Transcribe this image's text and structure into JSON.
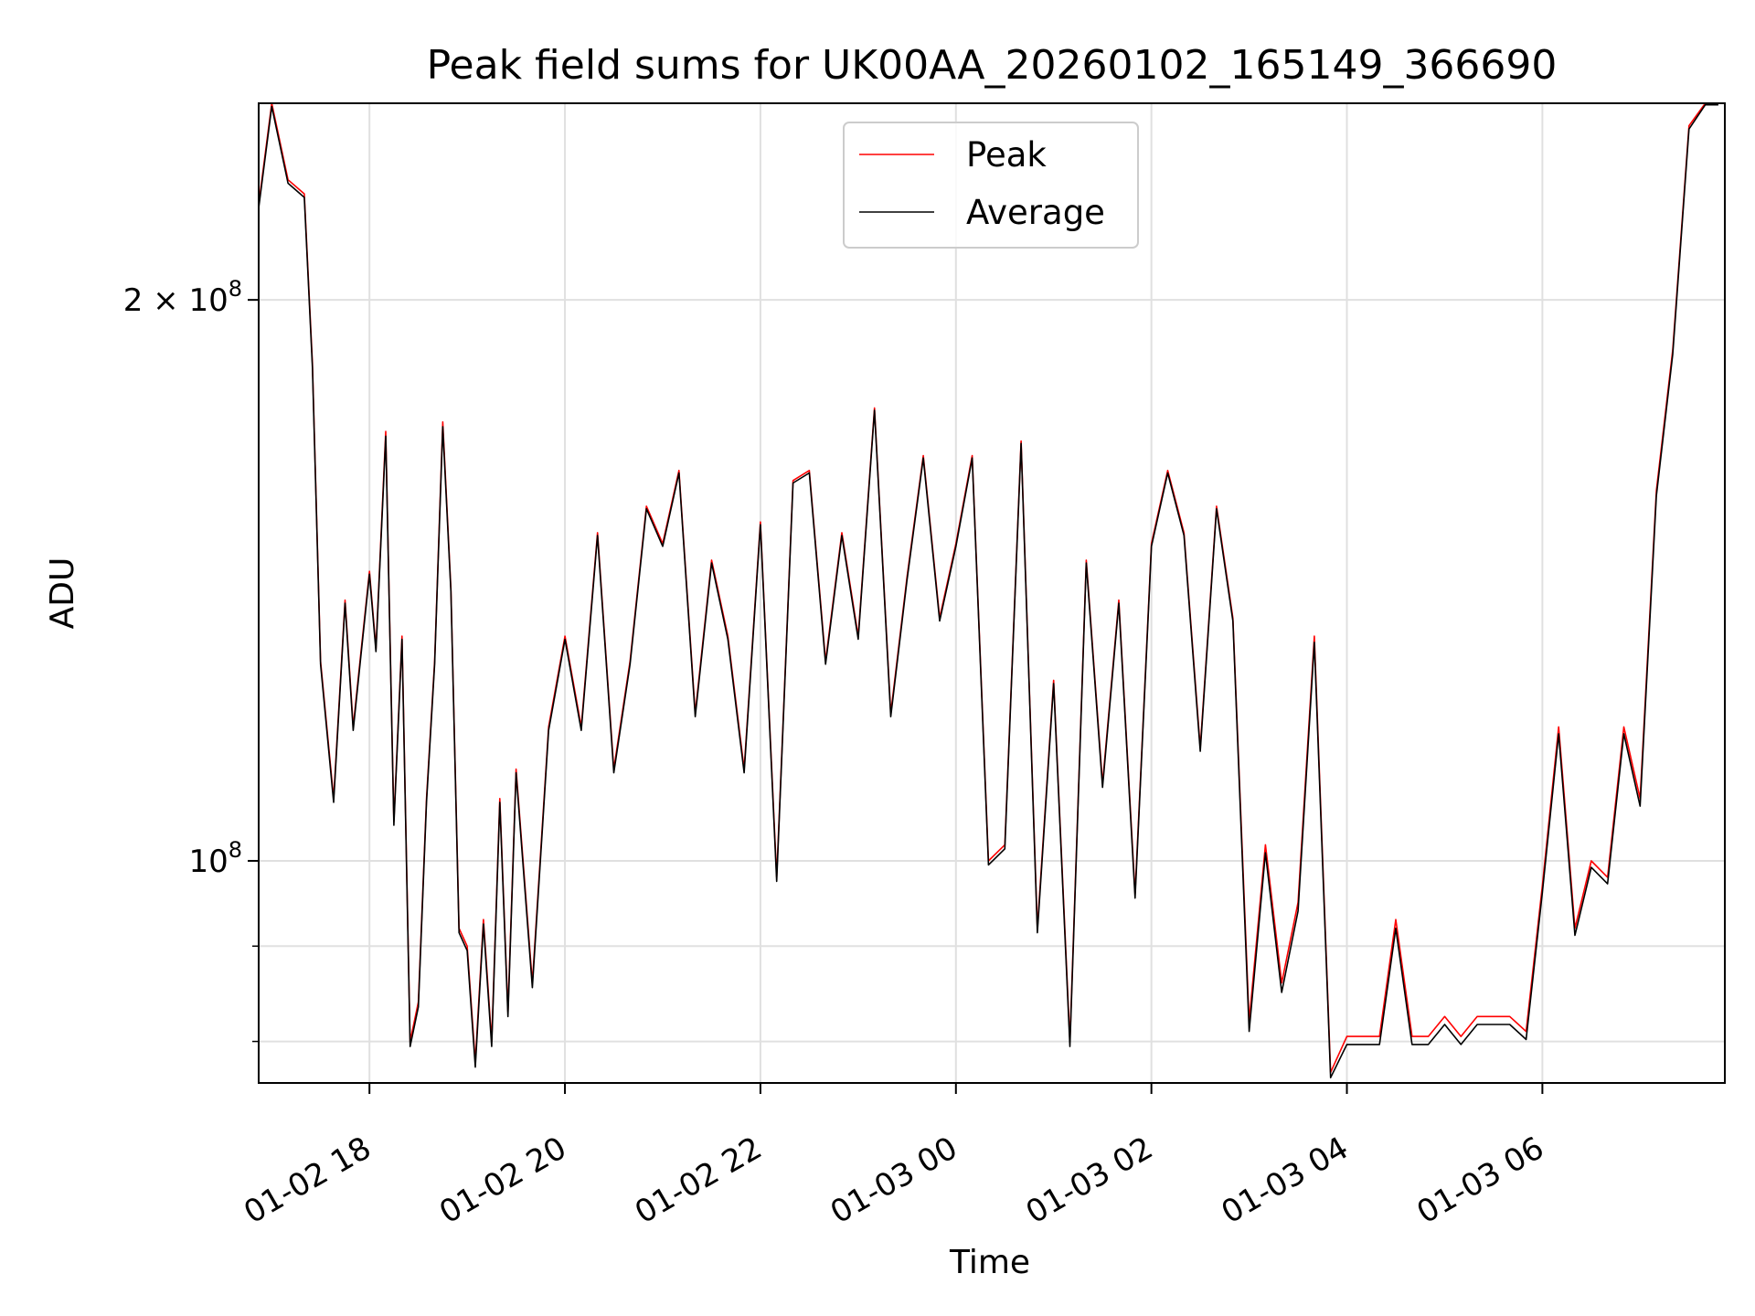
{
  "chart_data": {
    "type": "line",
    "title": "Peak field sums for UK00AA_20260102_165149_366690",
    "xlabel": "Time",
    "ylabel": "ADU",
    "y_scale": "log",
    "ylim": [
      76000000,
      255000000
    ],
    "xlim": [
      "2026-01-02 16:52",
      "2026-01-03 07:52"
    ],
    "grid": true,
    "legend_position": "top-center",
    "x_ticks": [
      {
        "x": "2026-01-02 18:00",
        "label": "01-02 18"
      },
      {
        "x": "2026-01-02 20:00",
        "label": "01-02 20"
      },
      {
        "x": "2026-01-02 22:00",
        "label": "01-02 22"
      },
      {
        "x": "2026-01-03 00:00",
        "label": "01-03 00"
      },
      {
        "x": "2026-01-03 02:00",
        "label": "01-03 02"
      },
      {
        "x": "2026-01-03 04:00",
        "label": "01-03 04"
      },
      {
        "x": "2026-01-03 06:00",
        "label": "01-03 06"
      }
    ],
    "y_ticks": [
      {
        "value": 100000000,
        "mantissa": "",
        "exponent": "8"
      },
      {
        "value": 200000000,
        "mantissa": "2 × ",
        "exponent": "8"
      }
    ],
    "y_minor_ticks": [
      80000000,
      90000000
    ],
    "series": [
      {
        "name": "Peak",
        "color": "#ff0000",
        "x": [
          "2026-01-02 16:52",
          "2026-01-02 17:00",
          "2026-01-02 17:10",
          "2026-01-02 17:20",
          "2026-01-02 17:25",
          "2026-01-02 17:30",
          "2026-01-02 17:38",
          "2026-01-02 17:45",
          "2026-01-02 17:50",
          "2026-01-02 17:55",
          "2026-01-02 18:00",
          "2026-01-02 18:04",
          "2026-01-02 18:10",
          "2026-01-02 18:15",
          "2026-01-02 18:20",
          "2026-01-02 18:25",
          "2026-01-02 18:30",
          "2026-01-02 18:35",
          "2026-01-02 18:40",
          "2026-01-02 18:45",
          "2026-01-02 18:50",
          "2026-01-02 18:55",
          "2026-01-02 19:00",
          "2026-01-02 19:05",
          "2026-01-02 19:10",
          "2026-01-02 19:15",
          "2026-01-02 19:20",
          "2026-01-02 19:25",
          "2026-01-02 19:30",
          "2026-01-02 19:40",
          "2026-01-02 19:50",
          "2026-01-02 20:00",
          "2026-01-02 20:10",
          "2026-01-02 20:20",
          "2026-01-02 20:30",
          "2026-01-02 20:40",
          "2026-01-02 20:50",
          "2026-01-02 21:00",
          "2026-01-02 21:10",
          "2026-01-02 21:20",
          "2026-01-02 21:30",
          "2026-01-02 21:40",
          "2026-01-02 21:50",
          "2026-01-02 22:00",
          "2026-01-02 22:10",
          "2026-01-02 22:20",
          "2026-01-02 22:30",
          "2026-01-02 22:40",
          "2026-01-02 22:50",
          "2026-01-02 23:00",
          "2026-01-02 23:10",
          "2026-01-02 23:20",
          "2026-01-02 23:30",
          "2026-01-02 23:40",
          "2026-01-02 23:50",
          "2026-01-03 00:00",
          "2026-01-03 00:10",
          "2026-01-03 00:20",
          "2026-01-03 00:30",
          "2026-01-03 00:40",
          "2026-01-03 00:50",
          "2026-01-03 01:00",
          "2026-01-03 01:10",
          "2026-01-03 01:20",
          "2026-01-03 01:30",
          "2026-01-03 01:40",
          "2026-01-03 01:50",
          "2026-01-03 02:00",
          "2026-01-03 02:10",
          "2026-01-03 02:20",
          "2026-01-03 02:30",
          "2026-01-03 02:40",
          "2026-01-03 02:50",
          "2026-01-03 03:00",
          "2026-01-03 03:10",
          "2026-01-03 03:20",
          "2026-01-03 03:30",
          "2026-01-03 03:40",
          "2026-01-03 03:50",
          "2026-01-03 04:00",
          "2026-01-03 04:10",
          "2026-01-03 04:20",
          "2026-01-03 04:30",
          "2026-01-03 04:40",
          "2026-01-03 04:50",
          "2026-01-03 05:00",
          "2026-01-03 05:10",
          "2026-01-03 05:20",
          "2026-01-03 05:30",
          "2026-01-03 05:40",
          "2026-01-03 05:50",
          "2026-01-03 06:00",
          "2026-01-03 06:10",
          "2026-01-03 06:20",
          "2026-01-03 06:30",
          "2026-01-03 06:40",
          "2026-01-03 06:50",
          "2026-01-03 07:00",
          "2026-01-03 07:10",
          "2026-01-03 07:20",
          "2026-01-03 07:30",
          "2026-01-03 07:40",
          "2026-01-03 07:48"
        ],
        "y": [
          225000000,
          255000000,
          232000000,
          228000000,
          185000000,
          128000000,
          108000000,
          138000000,
          118000000,
          130000000,
          143000000,
          130000000,
          170000000,
          105000000,
          132000000,
          80000000,
          84000000,
          108000000,
          128000000,
          172000000,
          140000000,
          92000000,
          90000000,
          78000000,
          93000000,
          80000000,
          108000000,
          83000000,
          112000000,
          86000000,
          118000000,
          132000000,
          118000000,
          150000000,
          112000000,
          128000000,
          155000000,
          148000000,
          162000000,
          120000000,
          145000000,
          132000000,
          112000000,
          152000000,
          98000000,
          160000000,
          162000000,
          128000000,
          150000000,
          132000000,
          175000000,
          120000000,
          142000000,
          165000000,
          135000000,
          148000000,
          165000000,
          100000000,
          102000000,
          168000000,
          92000000,
          125000000,
          80000000,
          145000000,
          110000000,
          138000000,
          96000000,
          148000000,
          162000000,
          150000000,
          115000000,
          155000000,
          135000000,
          82000000,
          102000000,
          86000000,
          95000000,
          132000000,
          77000000,
          80500000,
          80500000,
          80500000,
          93000000,
          80500000,
          80500000,
          82500000,
          80500000,
          82500000,
          82500000,
          82500000,
          81000000,
          97000000,
          118000000,
          92000000,
          100000000,
          98000000,
          118000000,
          108000000,
          158000000,
          188000000,
          248000000,
          255000000,
          255000000
        ]
      },
      {
        "name": "Average",
        "color": "#000000",
        "x": [
          "2026-01-02 16:52",
          "2026-01-02 17:00",
          "2026-01-02 17:10",
          "2026-01-02 17:20",
          "2026-01-02 17:25",
          "2026-01-02 17:30",
          "2026-01-02 17:38",
          "2026-01-02 17:45",
          "2026-01-02 17:50",
          "2026-01-02 17:55",
          "2026-01-02 18:00",
          "2026-01-02 18:04",
          "2026-01-02 18:10",
          "2026-01-02 18:15",
          "2026-01-02 18:20",
          "2026-01-02 18:25",
          "2026-01-02 18:30",
          "2026-01-02 18:35",
          "2026-01-02 18:40",
          "2026-01-02 18:45",
          "2026-01-02 18:50",
          "2026-01-02 18:55",
          "2026-01-02 19:00",
          "2026-01-02 19:05",
          "2026-01-02 19:10",
          "2026-01-02 19:15",
          "2026-01-02 19:20",
          "2026-01-02 19:25",
          "2026-01-02 19:30",
          "2026-01-02 19:40",
          "2026-01-02 19:50",
          "2026-01-02 20:00",
          "2026-01-02 20:10",
          "2026-01-02 20:20",
          "2026-01-02 20:30",
          "2026-01-02 20:40",
          "2026-01-02 20:50",
          "2026-01-02 21:00",
          "2026-01-02 21:10",
          "2026-01-02 21:20",
          "2026-01-02 21:30",
          "2026-01-02 21:40",
          "2026-01-02 21:50",
          "2026-01-02 22:00",
          "2026-01-02 22:10",
          "2026-01-02 22:20",
          "2026-01-02 22:30",
          "2026-01-02 22:40",
          "2026-01-02 22:50",
          "2026-01-02 23:00",
          "2026-01-02 23:10",
          "2026-01-02 23:20",
          "2026-01-02 23:30",
          "2026-01-02 23:40",
          "2026-01-02 23:50",
          "2026-01-03 00:00",
          "2026-01-03 00:10",
          "2026-01-03 00:20",
          "2026-01-03 00:30",
          "2026-01-03 00:40",
          "2026-01-03 00:50",
          "2026-01-03 01:00",
          "2026-01-03 01:10",
          "2026-01-03 01:20",
          "2026-01-03 01:30",
          "2026-01-03 01:40",
          "2026-01-03 01:50",
          "2026-01-03 02:00",
          "2026-01-03 02:10",
          "2026-01-03 02:20",
          "2026-01-03 02:30",
          "2026-01-03 02:40",
          "2026-01-03 02:50",
          "2026-01-03 03:00",
          "2026-01-03 03:10",
          "2026-01-03 03:20",
          "2026-01-03 03:30",
          "2026-01-03 03:40",
          "2026-01-03 03:50",
          "2026-01-03 04:00",
          "2026-01-03 04:10",
          "2026-01-03 04:20",
          "2026-01-03 04:30",
          "2026-01-03 04:40",
          "2026-01-03 04:50",
          "2026-01-03 05:00",
          "2026-01-03 05:10",
          "2026-01-03 05:20",
          "2026-01-03 05:30",
          "2026-01-03 05:40",
          "2026-01-03 05:50",
          "2026-01-03 06:00",
          "2026-01-03 06:10",
          "2026-01-03 06:20",
          "2026-01-03 06:30",
          "2026-01-03 06:40",
          "2026-01-03 06:50",
          "2026-01-03 07:00",
          "2026-01-03 07:10",
          "2026-01-03 07:20",
          "2026-01-03 07:30",
          "2026-01-03 07:40",
          "2026-01-03 07:48"
        ],
        "y": [
          224000000,
          254000000,
          231000000,
          227000000,
          184000000,
          127500000,
          107500000,
          137500000,
          117500000,
          129500000,
          142500000,
          129500000,
          169000000,
          104500000,
          131500000,
          79500000,
          83500000,
          107500000,
          127500000,
          171000000,
          139500000,
          91500000,
          89500000,
          77500000,
          92500000,
          79500000,
          107500000,
          82500000,
          111500000,
          85500000,
          117500000,
          131500000,
          117500000,
          149500000,
          111500000,
          127500000,
          154500000,
          147500000,
          161500000,
          119500000,
          144500000,
          131500000,
          111500000,
          151500000,
          97500000,
          159500000,
          161500000,
          127500000,
          149500000,
          131500000,
          174500000,
          119500000,
          141500000,
          164500000,
          134500000,
          147500000,
          164500000,
          99500000,
          101500000,
          167500000,
          91500000,
          124500000,
          79500000,
          144500000,
          109500000,
          137500000,
          95500000,
          147500000,
          161500000,
          149500000,
          114500000,
          154500000,
          134500000,
          81000000,
          101000000,
          85000000,
          94000000,
          131000000,
          76500000,
          79700000,
          79700000,
          79700000,
          92000000,
          79700000,
          79700000,
          81700000,
          79700000,
          81700000,
          81700000,
          81700000,
          80200000,
          96200000,
          117000000,
          91200000,
          99200000,
          97200000,
          117000000,
          107000000,
          157000000,
          187000000,
          247000000,
          254500000,
          254500000
        ]
      }
    ]
  }
}
